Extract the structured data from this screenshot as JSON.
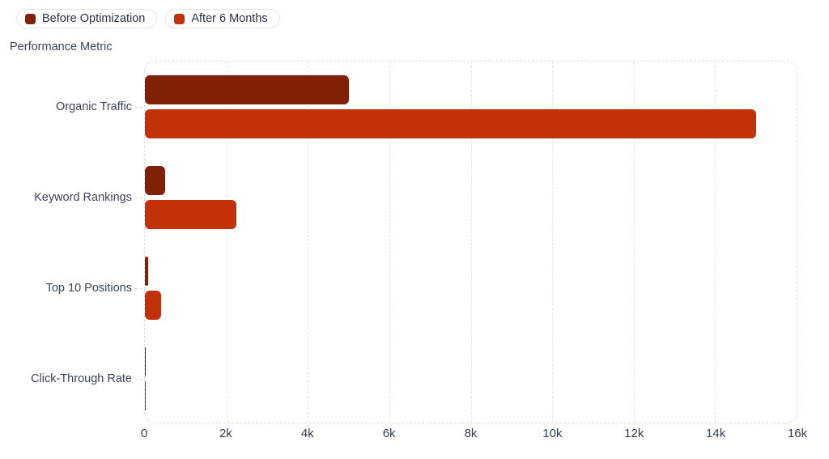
{
  "axis_title": "Performance Metric",
  "colors": {
    "background": "#ffffff",
    "before_series": "#802106",
    "after_series": "#c33109",
    "grid": "#e6e6ea",
    "plot_border": "#dedee3",
    "label_text": "#3b4458",
    "tick_text": "#333c52",
    "legend_text": "#273142",
    "legend_border": "#e4e4e9"
  },
  "chart_data": {
    "type": "bar",
    "orientation": "horizontal",
    "title": "",
    "xlabel": "",
    "ylabel": "Performance Metric",
    "categories": [
      "Organic Traffic",
      "Keyword Rankings",
      "Top 10 Positions",
      "Click-Through Rate"
    ],
    "series": [
      {
        "name": "Before Optimization",
        "color": "#802106",
        "values": [
          5000,
          500,
          80,
          2.5
        ]
      },
      {
        "name": "After 6 Months",
        "color": "#c33109",
        "values": [
          15000,
          2250,
          400,
          5.8
        ]
      }
    ],
    "xlim": [
      0,
      16000
    ],
    "x_ticks": [
      "0",
      "2k",
      "4k",
      "6k",
      "8k",
      "10k",
      "12k",
      "14k",
      "16k"
    ],
    "grid": "dashed-vertical",
    "legend_position": "top-left"
  }
}
